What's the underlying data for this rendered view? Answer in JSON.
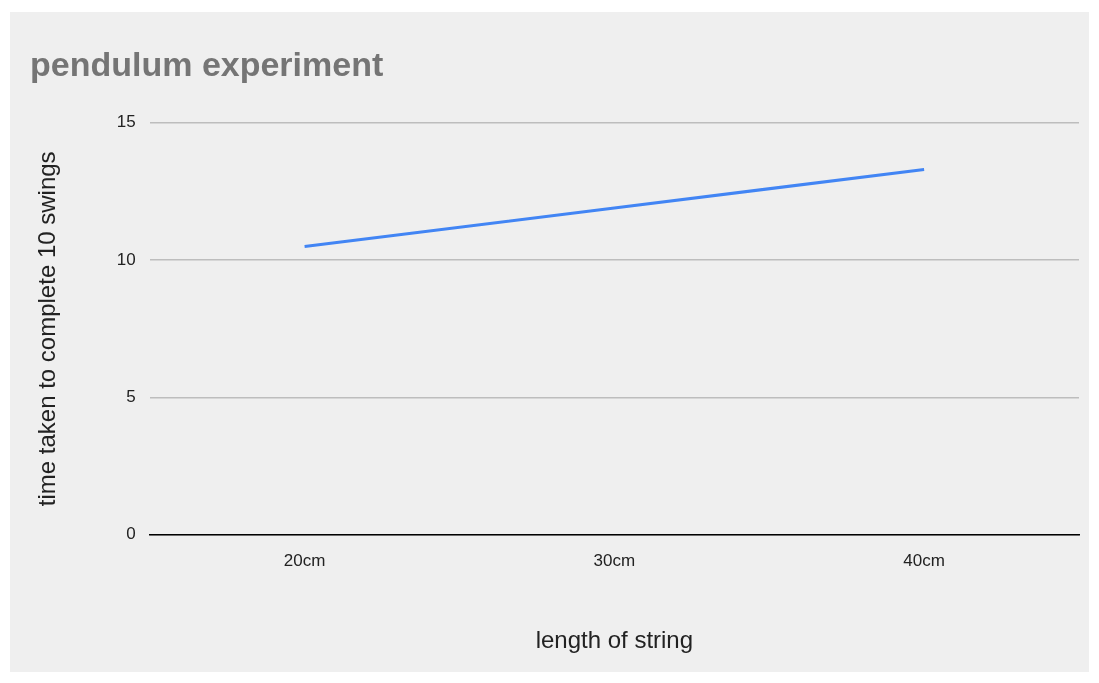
{
  "chart_data": {
    "type": "line",
    "title": "pendulum experiment",
    "xlabel": "length of string",
    "ylabel": "time taken to complete 10 swings",
    "categories": [
      "20cm",
      "30cm",
      "40cm"
    ],
    "series": [
      {
        "color": "#4285f4",
        "values": [
          10.5,
          11.9,
          13.3
        ]
      }
    ],
    "ylim": [
      0,
      15
    ],
    "yticks": [
      0,
      5,
      10,
      15
    ],
    "grid": "y"
  }
}
